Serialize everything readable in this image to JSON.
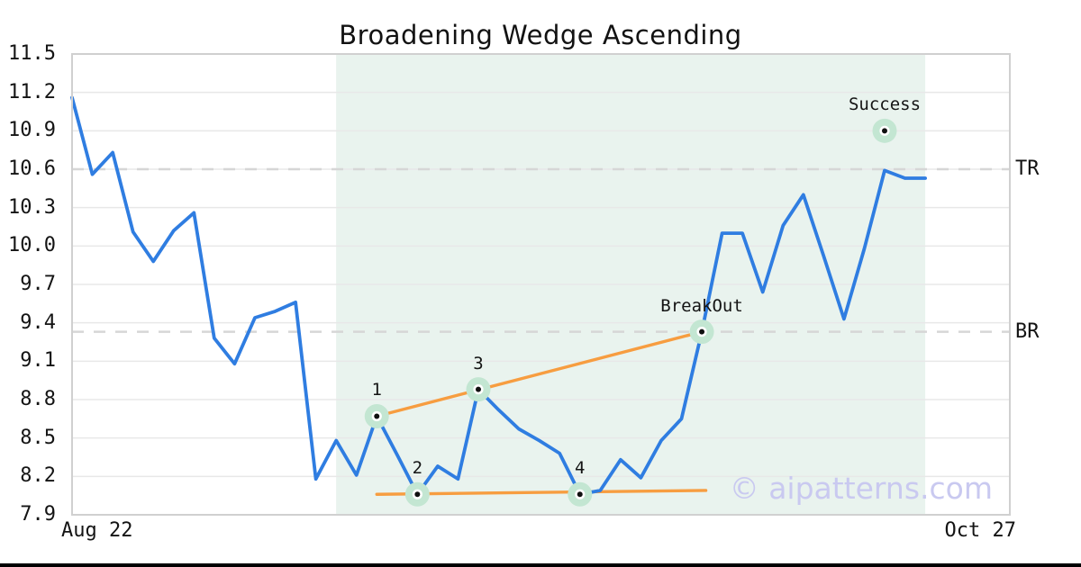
{
  "watermark": "© aipatterns.com",
  "colors": {
    "line": "#2F7DE1",
    "trend": "#F79D40",
    "shade": "#E9F3EE",
    "halo": "#C3E6D2",
    "marker_dot": "#101010",
    "dashed": "#D6D6D6",
    "grid": "#E8E8E8",
    "border": "#D0D0D0",
    "text": "#141414",
    "watermark": "#C9C9F0",
    "bottom_bar": "#000000"
  },
  "chart_data": {
    "type": "line",
    "title": "Broadening Wedge Ascending",
    "grid": true,
    "x_axis": {
      "start_label": "Aug 22",
      "end_label": "Oct 27"
    },
    "y_axis": {
      "min": 7.9,
      "max": 11.5,
      "tick_step": 0.3,
      "ticks": [
        11.5,
        11.2,
        10.9,
        10.6,
        10.3,
        10.0,
        9.7,
        9.4,
        9.1,
        8.8,
        8.5,
        8.2,
        7.9
      ]
    },
    "series": [
      {
        "name": "price",
        "values": [
          11.16,
          10.56,
          10.73,
          10.11,
          9.88,
          10.12,
          10.26,
          9.28,
          9.08,
          9.44,
          9.49,
          9.56,
          8.18,
          8.48,
          8.21,
          8.67,
          8.37,
          8.06,
          8.28,
          8.18,
          8.88,
          8.72,
          8.57,
          8.48,
          8.38,
          8.06,
          8.09,
          8.33,
          8.19,
          8.48,
          8.65,
          9.33,
          10.1,
          10.1,
          9.64,
          10.16,
          10.4,
          9.92,
          9.43,
          9.98,
          10.59,
          10.53,
          10.53
        ]
      }
    ],
    "levels": [
      {
        "label": "TR",
        "value": 10.6
      },
      {
        "label": "BR",
        "value": 9.33
      }
    ],
    "trendlines": [
      {
        "name": "upper-trendline",
        "from_index": 15,
        "from_value": 8.67,
        "to_index": 31,
        "to_value": 9.33
      },
      {
        "name": "lower-trendline",
        "from_index": 15,
        "from_value": 8.06,
        "to_index": 31.2,
        "to_value": 8.09
      }
    ],
    "markers": [
      {
        "label": "1",
        "index": 15,
        "value": 8.67
      },
      {
        "label": "2",
        "index": 17,
        "value": 8.06
      },
      {
        "label": "3",
        "index": 20,
        "value": 8.88
      },
      {
        "label": "4",
        "index": 25,
        "value": 8.06
      },
      {
        "label": "BreakOut",
        "index": 31,
        "value": 9.33
      },
      {
        "label": "Success",
        "index": 40,
        "value": 10.9
      }
    ],
    "pattern_zone": {
      "from_index": 13,
      "to_index": 42
    }
  }
}
